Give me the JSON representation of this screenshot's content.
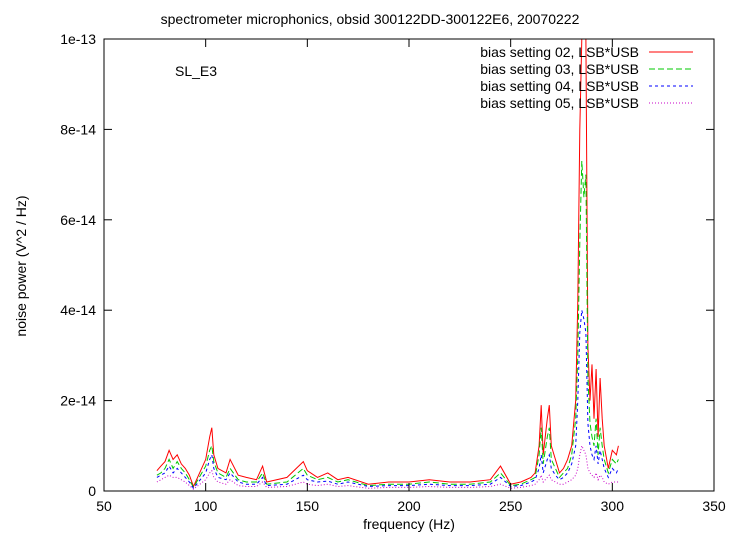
{
  "chart_data": {
    "type": "line",
    "title": "spectrometer microphonics, obsid 300122DD-300122E6, 20070222",
    "annotation": "SL_E3",
    "xlabel": "frequency (Hz)",
    "ylabel": "noise power (V^2 / Hz)",
    "xlim": [
      50,
      350
    ],
    "ylim": [
      0,
      1e-13
    ],
    "x_ticks": [
      50,
      100,
      150,
      200,
      250,
      300,
      350
    ],
    "x_tick_labels": [
      "50",
      "100",
      "150",
      "200",
      "250",
      "300",
      "350"
    ],
    "y_ticks": [
      0,
      2e-14,
      4e-14,
      6e-14,
      8e-14,
      1e-13
    ],
    "y_tick_labels": [
      "0",
      "2e-14",
      "4e-14",
      "6e-14",
      "8e-14",
      "1e-13"
    ],
    "grid": false,
    "legend_position": "top-right",
    "series": [
      {
        "name": "bias setting 02, LSB*USB",
        "color": "#ff0000",
        "dash": "solid",
        "x": [
          76,
          78,
          80,
          82,
          84,
          86,
          88,
          90,
          92,
          94,
          100,
          102,
          103,
          104,
          106,
          110,
          112,
          116,
          120,
          125,
          128,
          130,
          140,
          148,
          150,
          155,
          160,
          165,
          170,
          180,
          190,
          200,
          210,
          220,
          230,
          240,
          245,
          250,
          255,
          260,
          262,
          264,
          265,
          266,
          268,
          269,
          270,
          272,
          274,
          276,
          278,
          280,
          282,
          283,
          284,
          285,
          286,
          287,
          288,
          289,
          290,
          291,
          292,
          293,
          294,
          295,
          296,
          298,
          300,
          302,
          303
        ],
        "y": [
          4.5e-15,
          5.5e-15,
          6.5e-15,
          9e-15,
          7e-15,
          8e-15,
          6e-15,
          5e-15,
          3.5e-15,
          1e-15,
          7e-15,
          1.2e-14,
          1.4e-14,
          8e-15,
          5e-15,
          4e-15,
          7e-15,
          3.5e-15,
          3e-15,
          2.5e-15,
          5.5e-15,
          2e-15,
          3e-15,
          6.5e-15,
          4.5e-15,
          3e-15,
          4e-15,
          2.5e-15,
          3e-15,
          1.5e-15,
          2e-15,
          2e-15,
          2.5e-15,
          2e-15,
          2e-15,
          2.5e-15,
          5.5e-15,
          1.5e-15,
          2e-15,
          3e-15,
          4e-15,
          1e-14,
          1.9e-14,
          8e-15,
          1.6e-14,
          1.9e-14,
          1e-14,
          7e-15,
          4e-15,
          5e-15,
          7e-15,
          1e-14,
          2e-14,
          4.2e-14,
          8e-14,
          1e-13,
          1e-13,
          1e-13,
          3.2e-14,
          2e-14,
          2.8e-14,
          1.6e-14,
          2.7e-14,
          1.2e-14,
          2.5e-14,
          1.6e-14,
          1e-14,
          5e-15,
          9e-15,
          8e-15,
          1e-14
        ]
      },
      {
        "name": "bias setting 03, LSB*USB",
        "color": "#00c800",
        "dash": "6,3",
        "x": [
          76,
          78,
          80,
          82,
          84,
          86,
          88,
          90,
          92,
          94,
          100,
          102,
          103,
          104,
          106,
          110,
          112,
          116,
          120,
          125,
          128,
          130,
          140,
          148,
          150,
          155,
          160,
          165,
          170,
          180,
          190,
          200,
          210,
          220,
          230,
          240,
          245,
          250,
          255,
          260,
          262,
          264,
          265,
          266,
          268,
          269,
          270,
          272,
          274,
          276,
          278,
          280,
          282,
          283,
          284,
          285,
          286,
          287,
          288,
          289,
          290,
          291,
          292,
          293,
          294,
          295,
          296,
          298,
          300,
          302,
          303
        ],
        "y": [
          3.5e-15,
          4e-15,
          5e-15,
          7e-15,
          5e-15,
          6.5e-15,
          5e-15,
          4e-15,
          2.5e-15,
          8e-16,
          5.5e-15,
          9e-15,
          1e-14,
          6.5e-15,
          4e-15,
          3e-15,
          5e-15,
          2.5e-15,
          2e-15,
          2e-15,
          4e-15,
          1.5e-15,
          2e-15,
          5e-15,
          3.5e-15,
          2.5e-15,
          3e-15,
          2e-15,
          2.5e-15,
          1.2e-15,
          1.5e-15,
          1.5e-15,
          2e-15,
          1.5e-15,
          1.5e-15,
          2e-15,
          4e-15,
          1.2e-15,
          1.5e-15,
          2.5e-15,
          3e-15,
          8e-15,
          1.4e-14,
          6e-15,
          1.2e-14,
          1.4e-14,
          7e-15,
          5e-15,
          3e-15,
          4e-15,
          5e-15,
          8e-15,
          1.6e-14,
          3e-14,
          5.5e-14,
          7.3e-14,
          6.5e-14,
          7e-14,
          2.5e-14,
          1.5e-14,
          1.2e-14,
          1e-14,
          1.6e-14,
          8e-15,
          1.4e-14,
          1e-14,
          7e-15,
          4e-15,
          7e-15,
          6e-15,
          7e-15
        ]
      },
      {
        "name": "bias setting 04, LSB*USB",
        "color": "#0000ff",
        "dash": "3,3",
        "x": [
          76,
          78,
          80,
          82,
          84,
          86,
          88,
          90,
          92,
          94,
          100,
          102,
          103,
          104,
          106,
          110,
          112,
          116,
          120,
          125,
          128,
          130,
          140,
          148,
          150,
          155,
          160,
          165,
          170,
          180,
          190,
          200,
          210,
          220,
          230,
          240,
          245,
          250,
          255,
          260,
          262,
          264,
          265,
          266,
          268,
          269,
          270,
          272,
          274,
          276,
          278,
          280,
          282,
          283,
          284,
          285,
          286,
          287,
          288,
          289,
          290,
          291,
          292,
          293,
          294,
          295,
          296,
          298,
          300,
          302,
          303
        ],
        "y": [
          3e-15,
          3.5e-15,
          4e-15,
          5.5e-15,
          4e-15,
          5e-15,
          4e-15,
          3e-15,
          2e-15,
          6e-16,
          4e-15,
          7e-15,
          8e-15,
          5e-15,
          3e-15,
          2.5e-15,
          4e-15,
          2e-15,
          1.5e-15,
          1.5e-15,
          3e-15,
          1.2e-15,
          1.5e-15,
          3.5e-15,
          2.5e-15,
          2e-15,
          2.2e-15,
          1.5e-15,
          2e-15,
          1e-15,
          1.2e-15,
          1.2e-15,
          1.5e-15,
          1.2e-15,
          1.2e-15,
          1.5e-15,
          3e-15,
          1e-15,
          1.2e-15,
          2e-15,
          2.5e-15,
          5e-15,
          8e-15,
          4e-15,
          7e-15,
          8e-15,
          5e-15,
          3.5e-15,
          2.5e-15,
          3e-15,
          4e-15,
          6e-15,
          1e-14,
          2e-14,
          3.5e-14,
          4e-14,
          3.8e-14,
          3.5e-14,
          1.5e-14,
          1e-14,
          8e-15,
          7e-15,
          1e-14,
          6e-15,
          9e-15,
          7e-15,
          5e-15,
          3e-15,
          5e-15,
          4e-15,
          5e-15
        ]
      },
      {
        "name": "bias setting 05, LSB*USB",
        "color": "#c800c8",
        "dash": "1,2",
        "x": [
          76,
          78,
          80,
          82,
          84,
          86,
          88,
          90,
          92,
          94,
          100,
          102,
          103,
          104,
          106,
          110,
          112,
          116,
          120,
          125,
          128,
          130,
          140,
          148,
          150,
          155,
          160,
          165,
          170,
          180,
          190,
          200,
          210,
          220,
          230,
          240,
          245,
          250,
          255,
          260,
          262,
          264,
          265,
          266,
          268,
          269,
          270,
          272,
          274,
          276,
          278,
          280,
          282,
          283,
          284,
          285,
          286,
          287,
          288,
          289,
          290,
          291,
          292,
          293,
          294,
          295,
          296,
          298,
          300,
          302,
          303
        ],
        "y": [
          2e-15,
          2.5e-15,
          3e-15,
          3.5e-15,
          3e-15,
          3e-15,
          2.5e-15,
          2e-15,
          1.2e-15,
          4e-16,
          2.5e-15,
          4e-15,
          4.5e-15,
          3e-15,
          2e-15,
          1.5e-15,
          2.5e-15,
          1.2e-15,
          1e-15,
          1e-15,
          2e-15,
          8e-16,
          1e-15,
          2e-15,
          1.5e-15,
          1.2e-15,
          1.5e-15,
          1e-15,
          1.2e-15,
          6e-16,
          8e-16,
          8e-16,
          1e-15,
          8e-16,
          8e-16,
          1e-15,
          1.5e-15,
          6e-16,
          8e-16,
          1.2e-15,
          1.5e-15,
          2.5e-15,
          3.5e-15,
          2e-15,
          3e-15,
          3.5e-15,
          2.5e-15,
          2e-15,
          1.5e-15,
          1.5e-15,
          2e-15,
          2.5e-15,
          3.5e-15,
          5e-15,
          8e-15,
          1e-14,
          9e-15,
          8e-15,
          5e-15,
          4e-15,
          3.5e-15,
          3e-15,
          4e-15,
          2.5e-15,
          3.5e-15,
          3e-15,
          2e-15,
          1.5e-15,
          2e-15,
          2e-15,
          2e-15
        ]
      }
    ]
  }
}
